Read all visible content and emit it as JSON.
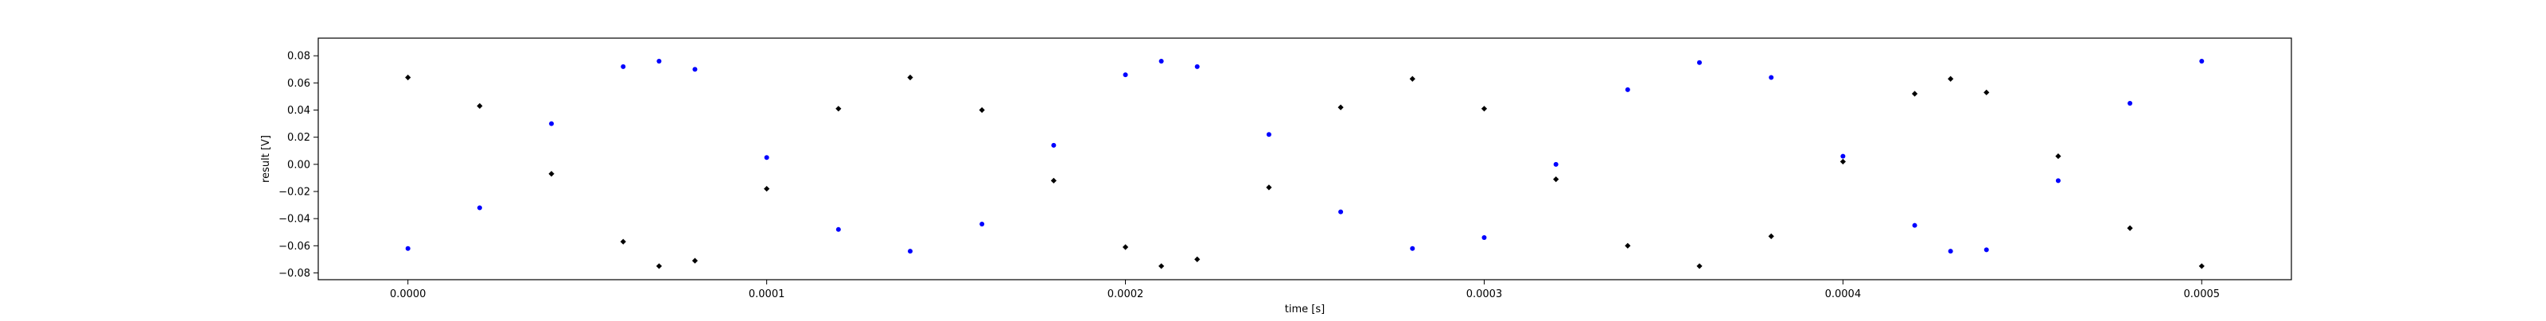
{
  "chart_data": {
    "type": "scatter",
    "title": "",
    "xlabel": "time [s]",
    "ylabel": "result [V]",
    "xlim": [
      -2.5e-05,
      0.000525
    ],
    "ylim": [
      -0.085,
      0.093
    ],
    "xticks": [
      {
        "value": 0.0,
        "label": "0.0000"
      },
      {
        "value": 0.0001,
        "label": "0.0001"
      },
      {
        "value": 0.0002,
        "label": "0.0002"
      },
      {
        "value": 0.0003,
        "label": "0.0003"
      },
      {
        "value": 0.0004,
        "label": "0.0004"
      },
      {
        "value": 0.0005,
        "label": "0.0005"
      }
    ],
    "yticks": [
      {
        "value": 0.08,
        "label": "0.08"
      },
      {
        "value": 0.06,
        "label": "0.06"
      },
      {
        "value": 0.04,
        "label": "0.04"
      },
      {
        "value": 0.02,
        "label": "0.02"
      },
      {
        "value": 0.0,
        "label": "0.00"
      },
      {
        "value": -0.02,
        "label": "−0.02"
      },
      {
        "value": -0.04,
        "label": "−0.04"
      },
      {
        "value": -0.06,
        "label": "−0.06"
      },
      {
        "value": -0.08,
        "label": "−0.08"
      }
    ],
    "grid": false,
    "legend": "none",
    "series": [
      {
        "color": "#000000",
        "marker": "diamond",
        "x": [
          0,
          2e-05,
          4e-05,
          6e-05,
          7e-05,
          8e-05,
          0.0001,
          0.00012,
          0.00014,
          0.00016,
          0.00018,
          0.0002,
          0.00021,
          0.00022,
          0.00024,
          0.00026,
          0.00028,
          0.0003,
          0.00032,
          0.00034,
          0.00036,
          0.00038,
          0.0004,
          0.00042,
          0.00043,
          0.00044,
          0.00046,
          0.00048,
          0.0005
        ],
        "y": [
          0.064,
          0.043,
          -0.007,
          -0.057,
          -0.075,
          -0.071,
          -0.018,
          0.041,
          0.064,
          0.04,
          -0.012,
          -0.061,
          -0.075,
          -0.07,
          -0.017,
          0.042,
          0.063,
          0.041,
          -0.011,
          -0.06,
          -0.075,
          -0.053,
          0.002,
          0.052,
          0.063,
          0.053,
          0.006,
          -0.047,
          -0.075
        ]
      },
      {
        "color": "#0000ff",
        "marker": "circle",
        "x": [
          0,
          2e-05,
          4e-05,
          6e-05,
          7e-05,
          8e-05,
          0.0001,
          0.00012,
          0.00014,
          0.00016,
          0.00018,
          0.0002,
          0.00021,
          0.00022,
          0.00024,
          0.00026,
          0.00028,
          0.0003,
          0.00032,
          0.00034,
          0.00036,
          0.00038,
          0.0004,
          0.00042,
          0.00043,
          0.00044,
          0.00046,
          0.00048,
          0.0005
        ],
        "y": [
          -0.062,
          -0.032,
          0.03,
          0.072,
          0.076,
          0.07,
          0.005,
          -0.048,
          -0.064,
          -0.044,
          0.014,
          0.066,
          0.076,
          0.072,
          0.022,
          -0.035,
          -0.062,
          -0.054,
          0.0,
          0.055,
          0.075,
          0.064,
          0.006,
          -0.045,
          -0.064,
          -0.063,
          -0.012,
          0.045,
          0.076
        ]
      }
    ]
  }
}
